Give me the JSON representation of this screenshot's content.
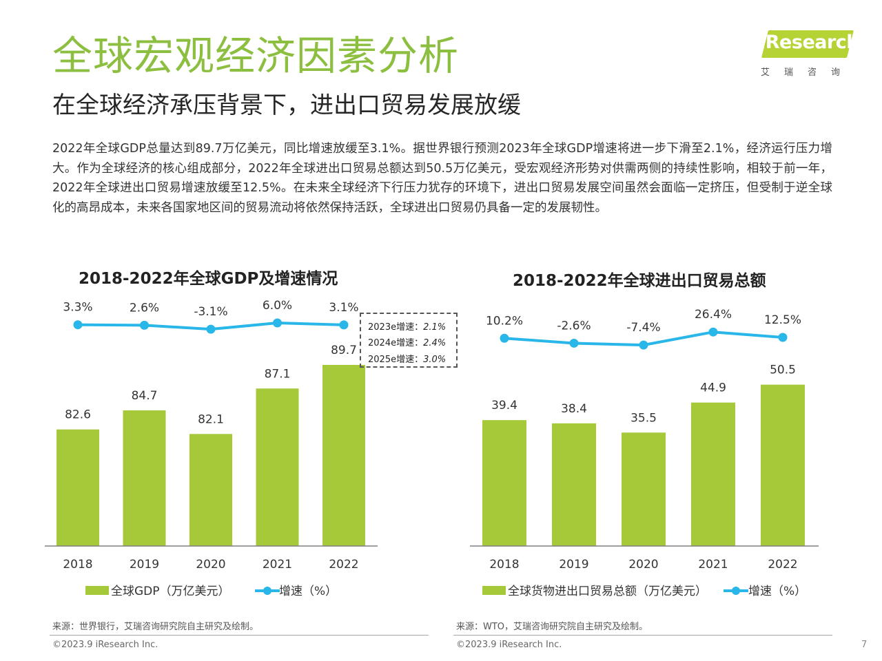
{
  "header": {
    "title": "全球宏观经济因素分析",
    "subtitle": "在全球经济承压背景下，进出口贸易发展放缓",
    "logo_text": "Research",
    "logo_sub": "艾瑞咨询"
  },
  "body_text": "2022年全球GDP总量达到89.7万亿美元，同比增速放缓至3.1%。据世界银行预测2023年全球GDP增速将进一步下滑至2.1%，经济运行压力增大。作为全球经济的核心组成部分，2022年全球进出口贸易总额达到50.5万亿美元，受宏观经济形势对供需两侧的持续性影响，相较于前一年，2022年全球进出口贸易增速放缓至12.5%。在未来全球经济下行压力犹存的环境下，进出口贸易发展空间虽然会面临一定挤压，但受制于逆全球化的高昂成本，未来各国家地区间的贸易流动将依然保持活跃，全球进出口贸易仍具备一定的发展韧性。",
  "colors": {
    "bar": "#a6c93a",
    "line": "#29b6e8",
    "title": "#8cbf3f"
  },
  "chart_data": [
    {
      "type": "bar",
      "title": "2018-2022年全球GDP及增速情况",
      "categories": [
        "2018",
        "2019",
        "2020",
        "2021",
        "2022"
      ],
      "series": [
        {
          "name": "全球GDP（万亿美元）",
          "type": "bar",
          "values": [
            82.6,
            84.7,
            82.1,
            87.1,
            89.7
          ],
          "labels": [
            "82.6",
            "84.7",
            "82.1",
            "87.1",
            "89.7"
          ]
        },
        {
          "name": "增速（%）",
          "type": "line",
          "values": [
            3.3,
            2.6,
            -3.1,
            6.0,
            3.1
          ],
          "labels": [
            "3.3%",
            "2.6%",
            "-3.1%",
            "6.0%",
            "3.1%"
          ]
        }
      ],
      "annotation": [
        {
          "label": "2023e增速：",
          "value": "2.1%"
        },
        {
          "label": "2024e增速：",
          "value": "2.4%"
        },
        {
          "label": "2025e增速：",
          "value": "3.0%"
        }
      ],
      "legend": "bottom",
      "grid": false
    },
    {
      "type": "bar",
      "title": "2018-2022年全球进出口贸易总额",
      "categories": [
        "2018",
        "2019",
        "2020",
        "2021",
        "2022"
      ],
      "series": [
        {
          "name": "全球货物进出口贸易总额（万亿美元）",
          "type": "bar",
          "values": [
            39.4,
            38.4,
            35.5,
            44.9,
            50.5
          ],
          "labels": [
            "39.4",
            "38.4",
            "35.5",
            "44.9",
            "50.5"
          ]
        },
        {
          "name": "增速（%）",
          "type": "line",
          "values": [
            10.2,
            -2.6,
            -7.4,
            26.4,
            12.5
          ],
          "labels": [
            "10.2%",
            "-2.6%",
            "-7.4%",
            "26.4%",
            "12.5%"
          ]
        }
      ],
      "legend": "bottom",
      "grid": false
    }
  ],
  "footer": {
    "source_left": "来源：世界银行，艾瑞咨询研究院自主研究及绘制。",
    "source_right": "来源：WTO，艾瑞咨询研究院自主研究及绘制。",
    "copyright": "©2023.9 iResearch Inc.",
    "page": "7"
  }
}
